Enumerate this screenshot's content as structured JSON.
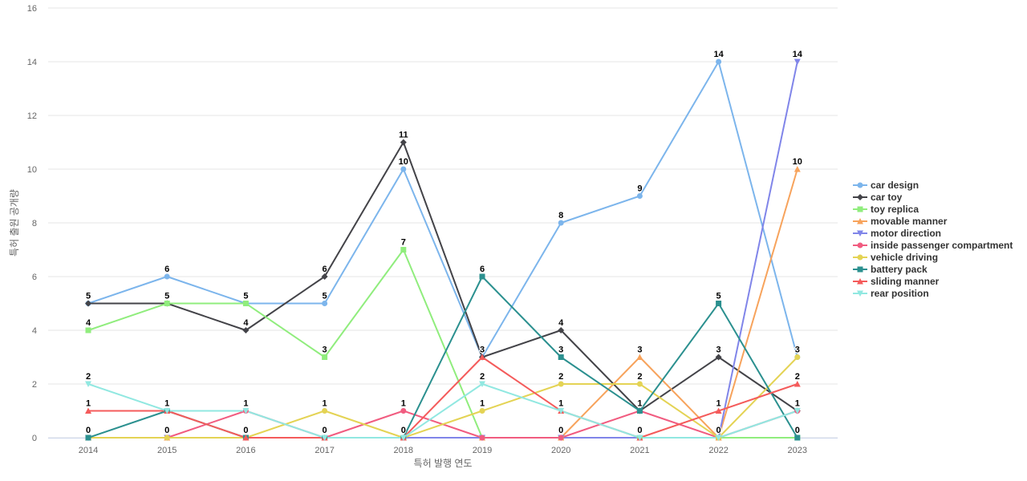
{
  "chart_data": {
    "type": "line",
    "title": "",
    "xlabel": "특허 발행 연도",
    "ylabel": "특허 출원 공개량",
    "ylim": [
      0,
      16
    ],
    "yticks": [
      "0",
      "2",
      "4",
      "6",
      "8",
      "10",
      "12",
      "14",
      "16"
    ],
    "categories": [
      "2014",
      "2015",
      "2016",
      "2017",
      "2018",
      "2019",
      "2020",
      "2021",
      "2022",
      "2023"
    ],
    "grid": true,
    "legend_position": "right",
    "series": [
      {
        "name": "car design",
        "color": "#7cb5ec",
        "marker": "circle",
        "values": [
          5,
          6,
          5,
          5,
          10,
          3,
          8,
          9,
          14,
          3
        ],
        "labels": [
          "5",
          "6",
          "",
          "5",
          "10",
          "",
          "8",
          "9",
          "14",
          ""
        ]
      },
      {
        "name": "car toy",
        "color": "#434348",
        "marker": "diamond",
        "values": [
          5,
          5,
          4,
          6,
          11,
          3,
          4,
          1,
          3,
          1
        ],
        "labels": [
          "",
          "5",
          "4",
          "6",
          "11",
          "3",
          "4",
          "",
          "3",
          ""
        ]
      },
      {
        "name": "toy replica",
        "color": "#90ed7d",
        "marker": "square",
        "values": [
          4,
          5,
          5,
          3,
          7,
          0,
          0,
          0,
          0,
          0
        ],
        "labels": [
          "4",
          "",
          "5",
          "3",
          "7",
          "",
          "",
          "",
          "",
          ""
        ]
      },
      {
        "name": "movable manner",
        "color": "#f7a35c",
        "marker": "triangle",
        "values": [
          0,
          0,
          0,
          0,
          0,
          0,
          0,
          3,
          0,
          10
        ],
        "labels": [
          "",
          "",
          "",
          "",
          "",
          "",
          "",
          "3",
          "",
          "10"
        ]
      },
      {
        "name": "motor direction",
        "color": "#8085e9",
        "marker": "triangle-down",
        "values": [
          0,
          0,
          0,
          0,
          0,
          0,
          0,
          0,
          0,
          14
        ],
        "labels": [
          "",
          "",
          "",
          "",
          "",
          "",
          "",
          "",
          "",
          "14"
        ]
      },
      {
        "name": "inside passenger compartment",
        "color": "#f15c80",
        "marker": "circle",
        "values": [
          0,
          0,
          1,
          0,
          1,
          0,
          0,
          1,
          0,
          1
        ],
        "labels": [
          "",
          "",
          "",
          "",
          "1",
          "",
          "0",
          "",
          "",
          ""
        ]
      },
      {
        "name": "vehicle driving",
        "color": "#e4d354",
        "marker": "circle",
        "values": [
          0,
          0,
          0,
          1,
          0,
          1,
          2,
          2,
          0,
          3
        ],
        "labels": [
          "",
          "0",
          "0",
          "1",
          "0",
          "1",
          "2",
          "2",
          "",
          "3"
        ]
      },
      {
        "name": "battery pack",
        "color": "#2b908f",
        "marker": "square",
        "values": [
          0,
          1,
          0,
          0,
          0,
          6,
          3,
          1,
          5,
          0
        ],
        "labels": [
          "0",
          "",
          "",
          "0",
          "",
          "6",
          "3",
          "1",
          "5",
          "0"
        ]
      },
      {
        "name": "sliding manner",
        "color": "#f45b5b",
        "marker": "triangle",
        "values": [
          1,
          1,
          0,
          0,
          0,
          3,
          1,
          0,
          1,
          2
        ],
        "labels": [
          "1",
          "",
          "",
          "",
          "",
          "3",
          "1",
          "0",
          "1",
          "2"
        ]
      },
      {
        "name": "rear position",
        "color": "#91e8e1",
        "marker": "triangle-down",
        "values": [
          2,
          1,
          1,
          0,
          0,
          2,
          1,
          0,
          0,
          1
        ],
        "labels": [
          "2",
          "1",
          "1",
          "",
          "",
          "2",
          "",
          "",
          "0",
          "1"
        ]
      }
    ]
  }
}
